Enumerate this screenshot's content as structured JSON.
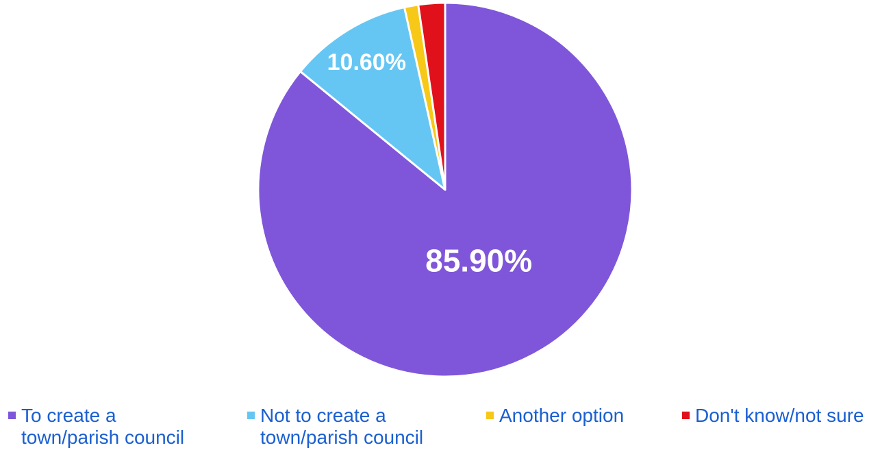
{
  "chart_data": {
    "type": "pie",
    "categories": [
      "To create a\ntown/parish council",
      "Not to create a\ntown/parish council",
      "Another option",
      "Don't know/not sure"
    ],
    "values": [
      85.9,
      10.6,
      1.2,
      2.3
    ],
    "colors": [
      "#7f56d9",
      "#66c6f3",
      "#f7c817",
      "#e0111b"
    ],
    "data_labels": [
      "85.90%",
      "10.60%",
      "",
      ""
    ],
    "legend_placement": "bottom",
    "start_angle_deg": 0,
    "direction": "clockwise"
  }
}
